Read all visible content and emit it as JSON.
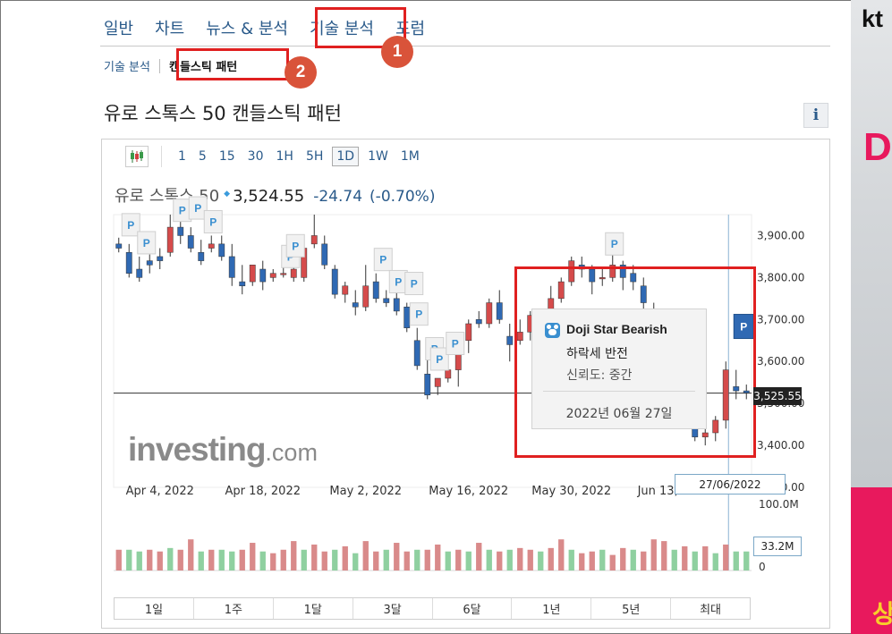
{
  "tabs": [
    "일반",
    "차트",
    "뉴스 & 분석",
    "기술 분석",
    "포럼"
  ],
  "badges": [
    "1",
    "2"
  ],
  "subnav": {
    "item1": "기술 분석",
    "item2": "캔들스틱 패턴"
  },
  "page_title": "유로 스톡스 50 캔들스틱 패턴",
  "info_label": "i",
  "toolbar": {
    "chart_type_icon": "candlestick-icon",
    "timeframes": [
      "1",
      "5",
      "15",
      "30",
      "1H",
      "5H",
      "1D",
      "1W",
      "1M"
    ],
    "selected": "1D"
  },
  "quote": {
    "name": "유로 스톡스 50",
    "price": "3,524.55",
    "change": "-24.74",
    "change_pct": "(-0.70%)"
  },
  "colors": {
    "up": "#d54b4b",
    "down": "#2f69b3",
    "vol_up": "#d98a8a",
    "vol_down": "#8fd0a0",
    "highlight": "#e02020",
    "badge": "#d9533a",
    "link": "#2a5a8a"
  },
  "tooltip": {
    "title": "Doji Star Bearish",
    "subtitle": "하락세 반전",
    "reliability": "신뢰도: 중간",
    "date": "2022년 06월 27일"
  },
  "logo": {
    "main": "investing",
    "suffix": ".com"
  },
  "crosshair": {
    "date_label": "27/06/2022",
    "price_label": "3,525.55",
    "volume_label": "33.2M"
  },
  "range_buttons": [
    "1일",
    "1주",
    "1달",
    "3달",
    "6달",
    "1년",
    "5년",
    "최대"
  ],
  "ad": {
    "brand": "kt",
    "glyph_top": "D",
    "glyph_bottom": "상"
  },
  "chart_data": {
    "type": "candlestick",
    "x_tick_labels": [
      "Apr 4, 2022",
      "Apr 18, 2022",
      "May 2, 2022",
      "May 16, 2022",
      "May 30, 2022",
      "Jun 13, 2022"
    ],
    "y_tick_labels": [
      "3,900.00",
      "3,800.00",
      "3,700.00",
      "3,600.00",
      "3,500.00",
      "3,400.00",
      "3,300.00"
    ],
    "ylim": [
      3300,
      3950
    ],
    "volume_axis_labels": [
      "100.0M",
      "0"
    ],
    "volume_range": [
      0,
      100
    ],
    "last_price": 3524.55,
    "pattern_marker": "P",
    "series": [
      {
        "name": "",
        "candles": [
          [
            3880,
            3895,
            3870,
            3860
          ],
          [
            3860,
            3880,
            3810,
            3800
          ],
          [
            3820,
            3850,
            3800,
            3790
          ],
          [
            3840,
            3855,
            3830,
            3810
          ],
          [
            3850,
            3870,
            3840,
            3820
          ],
          [
            3860,
            3950,
            3920,
            3850
          ],
          [
            3920,
            3940,
            3900,
            3880
          ],
          [
            3900,
            3920,
            3870,
            3860
          ],
          [
            3860,
            3890,
            3840,
            3830
          ],
          [
            3870,
            3900,
            3880,
            3860
          ],
          [
            3880,
            3900,
            3850,
            3840
          ],
          [
            3850,
            3880,
            3800,
            3780
          ],
          [
            3790,
            3830,
            3780,
            3760
          ],
          [
            3790,
            3820,
            3830,
            3780
          ],
          [
            3820,
            3840,
            3790,
            3770
          ],
          [
            3800,
            3820,
            3810,
            3790
          ],
          [
            3810,
            3830,
            3810,
            3800
          ],
          [
            3800,
            3830,
            3820,
            3790
          ],
          [
            3800,
            3880,
            3870,
            3790
          ],
          [
            3880,
            3950,
            3900,
            3870
          ],
          [
            3880,
            3900,
            3830,
            3820
          ],
          [
            3820,
            3830,
            3760,
            3750
          ],
          [
            3760,
            3790,
            3780,
            3740
          ],
          [
            3740,
            3770,
            3730,
            3710
          ],
          [
            3730,
            3830,
            3780,
            3720
          ],
          [
            3790,
            3810,
            3750,
            3740
          ],
          [
            3750,
            3770,
            3740,
            3730
          ],
          [
            3750,
            3770,
            3720,
            3710
          ],
          [
            3730,
            3740,
            3680,
            3670
          ],
          [
            3650,
            3680,
            3590,
            3580
          ],
          [
            3570,
            3610,
            3520,
            3510
          ],
          [
            3540,
            3560,
            3560,
            3520
          ],
          [
            3560,
            3610,
            3580,
            3550
          ],
          [
            3580,
            3660,
            3640,
            3540
          ],
          [
            3650,
            3700,
            3690,
            3620
          ],
          [
            3700,
            3720,
            3690,
            3680
          ],
          [
            3690,
            3750,
            3740,
            3680
          ],
          [
            3740,
            3770,
            3700,
            3690
          ],
          [
            3660,
            3690,
            3640,
            3600
          ],
          [
            3650,
            3700,
            3670,
            3640
          ],
          [
            3670,
            3720,
            3710,
            3650
          ],
          [
            3700,
            3720,
            3650,
            3640
          ],
          [
            3650,
            3780,
            3750,
            3640
          ],
          [
            3750,
            3800,
            3790,
            3740
          ],
          [
            3790,
            3850,
            3840,
            3780
          ],
          [
            3830,
            3850,
            3820,
            3800
          ],
          [
            3820,
            3830,
            3790,
            3760
          ],
          [
            3800,
            3820,
            3800,
            3780
          ],
          [
            3800,
            3860,
            3830,
            3790
          ],
          [
            3830,
            3840,
            3800,
            3770
          ],
          [
            3810,
            3830,
            3790,
            3770
          ],
          [
            3780,
            3800,
            3740,
            3720
          ],
          [
            3720,
            3740,
            3690,
            3660
          ],
          [
            3660,
            3680,
            3610,
            3580
          ],
          [
            3570,
            3600,
            3540,
            3510
          ],
          [
            3540,
            3560,
            3450,
            3440
          ],
          [
            3450,
            3470,
            3420,
            3410
          ],
          [
            3420,
            3440,
            3430,
            3400
          ],
          [
            3430,
            3470,
            3460,
            3410
          ],
          [
            3460,
            3600,
            3580,
            3440
          ],
          [
            3540,
            3580,
            3530,
            3510
          ],
          [
            3530,
            3545,
            3525,
            3510
          ]
        ]
      }
    ],
    "volumes": [
      [
        60,
        1
      ],
      [
        60,
        0
      ],
      [
        55,
        0
      ],
      [
        60,
        1
      ],
      [
        55,
        1
      ],
      [
        65,
        0
      ],
      [
        60,
        1
      ],
      [
        90,
        1
      ],
      [
        55,
        0
      ],
      [
        60,
        1
      ],
      [
        60,
        0
      ],
      [
        55,
        0
      ],
      [
        60,
        1
      ],
      [
        80,
        1
      ],
      [
        55,
        0
      ],
      [
        50,
        1
      ],
      [
        60,
        1
      ],
      [
        85,
        1
      ],
      [
        60,
        0
      ],
      [
        75,
        1
      ],
      [
        55,
        1
      ],
      [
        60,
        0
      ],
      [
        70,
        1
      ],
      [
        50,
        0
      ],
      [
        85,
        1
      ],
      [
        55,
        1
      ],
      [
        60,
        0
      ],
      [
        80,
        1
      ],
      [
        55,
        1
      ],
      [
        60,
        0
      ],
      [
        60,
        1
      ],
      [
        75,
        1
      ],
      [
        55,
        0
      ],
      [
        60,
        1
      ],
      [
        55,
        0
      ],
      [
        80,
        1
      ],
      [
        60,
        0
      ],
      [
        55,
        1
      ],
      [
        60,
        0
      ],
      [
        65,
        1
      ],
      [
        60,
        1
      ],
      [
        55,
        0
      ],
      [
        65,
        1
      ],
      [
        90,
        1
      ],
      [
        60,
        0
      ],
      [
        50,
        1
      ],
      [
        55,
        1
      ],
      [
        60,
        0
      ],
      [
        45,
        1
      ],
      [
        65,
        1
      ],
      [
        60,
        0
      ],
      [
        55,
        1
      ],
      [
        90,
        1
      ],
      [
        85,
        1
      ],
      [
        60,
        0
      ],
      [
        70,
        1
      ],
      [
        55,
        0
      ],
      [
        70,
        1
      ],
      [
        50,
        0
      ],
      [
        75,
        1
      ],
      [
        55,
        0
      ],
      [
        55,
        0
      ]
    ],
    "pattern_markers_at": [
      1,
      2,
      6,
      7,
      9,
      16,
      17,
      25,
      27,
      28,
      29,
      30,
      31,
      32,
      48
    ]
  }
}
